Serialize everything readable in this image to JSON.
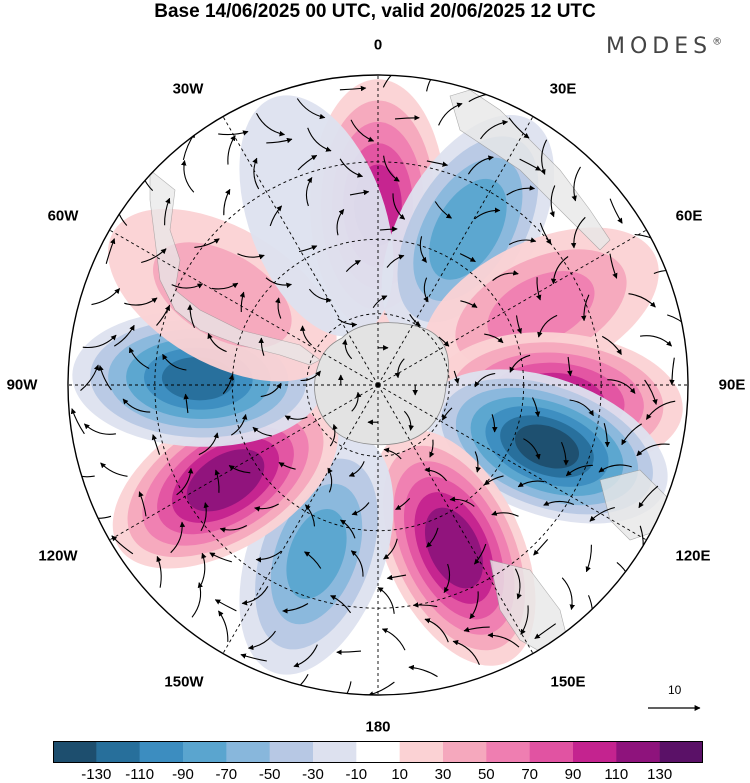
{
  "title": "Base 14/06/2025 00 UTC, valid 20/06/2025 12 UTC",
  "brand": "MODES",
  "brand_mark": "®",
  "lon_labels": {
    "l0": "0",
    "l30e": "30E",
    "l60e": "60E",
    "l90e": "90E",
    "l120e": "120E",
    "l150e": "150E",
    "l180": "180",
    "l150w": "150W",
    "l120w": "120W",
    "l90w": "90W",
    "l60w": "60W",
    "l30w": "30W"
  },
  "reference_vector": {
    "label": "10"
  },
  "colorbar": {
    "colors": [
      "#1d4e6e",
      "#276f9b",
      "#3c8dc0",
      "#5aa5cf",
      "#88b7dc",
      "#b7c8e4",
      "#dde1ef",
      "#ffffff",
      "#fbd2d4",
      "#f5a8bd",
      "#ef7eb1",
      "#e153a2",
      "#c4238f",
      "#8e137c",
      "#5a1167"
    ],
    "ticks": [
      "-130",
      "-110",
      "-90",
      "-70",
      "-50",
      "-30",
      "-10",
      "10",
      "30",
      "50",
      "70",
      "90",
      "110",
      "130"
    ]
  },
  "anomaly_centers": [
    {
      "lon": 0,
      "value": 95
    },
    {
      "lon": 30,
      "value": -85
    },
    {
      "lon": 65,
      "value": 55
    },
    {
      "lon": 95,
      "value": 105
    },
    {
      "lon": 110,
      "value": -135
    },
    {
      "lon": 155,
      "value": 125
    },
    {
      "lon": 200,
      "value": -75
    },
    {
      "lon": 238,
      "value": 125
    },
    {
      "lon": 272,
      "value": -115
    },
    {
      "lon": 300,
      "value": 35
    },
    {
      "lon": 340,
      "value": -25
    }
  ]
}
